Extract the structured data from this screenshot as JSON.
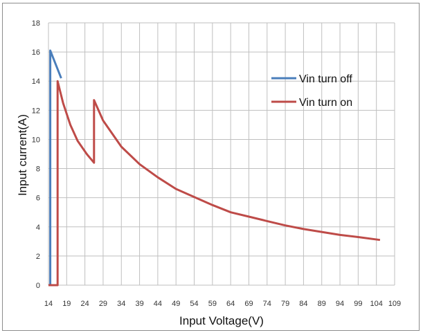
{
  "chart_data": {
    "type": "line",
    "title": "",
    "xlabel": "Input Voltage(V)",
    "ylabel": "Input current(A)",
    "xlim": [
      14,
      109
    ],
    "ylim": [
      0,
      18
    ],
    "x_ticks": [
      14,
      19,
      24,
      29,
      34,
      39,
      44,
      49,
      54,
      59,
      64,
      69,
      74,
      79,
      84,
      89,
      94,
      99,
      104,
      109
    ],
    "y_ticks": [
      0,
      2,
      4,
      6,
      8,
      10,
      12,
      14,
      16,
      18
    ],
    "grid": true,
    "legend_position": "right",
    "series": [
      {
        "name": "Vin turn off",
        "color": "#4a7ebb",
        "points": [
          [
            14.5,
            0
          ],
          [
            14.5,
            16.1
          ],
          [
            17.5,
            14.2
          ]
        ]
      },
      {
        "name": "Vin turn on",
        "color": "#be4b48",
        "points": [
          [
            14,
            0
          ],
          [
            16.5,
            0
          ],
          [
            16.5,
            14
          ],
          [
            18,
            12.5
          ],
          [
            20,
            11
          ],
          [
            22,
            9.9
          ],
          [
            24.5,
            9.0
          ],
          [
            26.5,
            8.4
          ],
          [
            26.5,
            12.7
          ],
          [
            29,
            11.3
          ],
          [
            34,
            9.5
          ],
          [
            39,
            8.3
          ],
          [
            44,
            7.4
          ],
          [
            49,
            6.6
          ],
          [
            54,
            6.05
          ],
          [
            59,
            5.5
          ],
          [
            64,
            5.0
          ],
          [
            69,
            4.7
          ],
          [
            74,
            4.4
          ],
          [
            79,
            4.1
          ],
          [
            84,
            3.85
          ],
          [
            89,
            3.65
          ],
          [
            94,
            3.45
          ],
          [
            99,
            3.3
          ],
          [
            105,
            3.1
          ]
        ]
      }
    ]
  }
}
